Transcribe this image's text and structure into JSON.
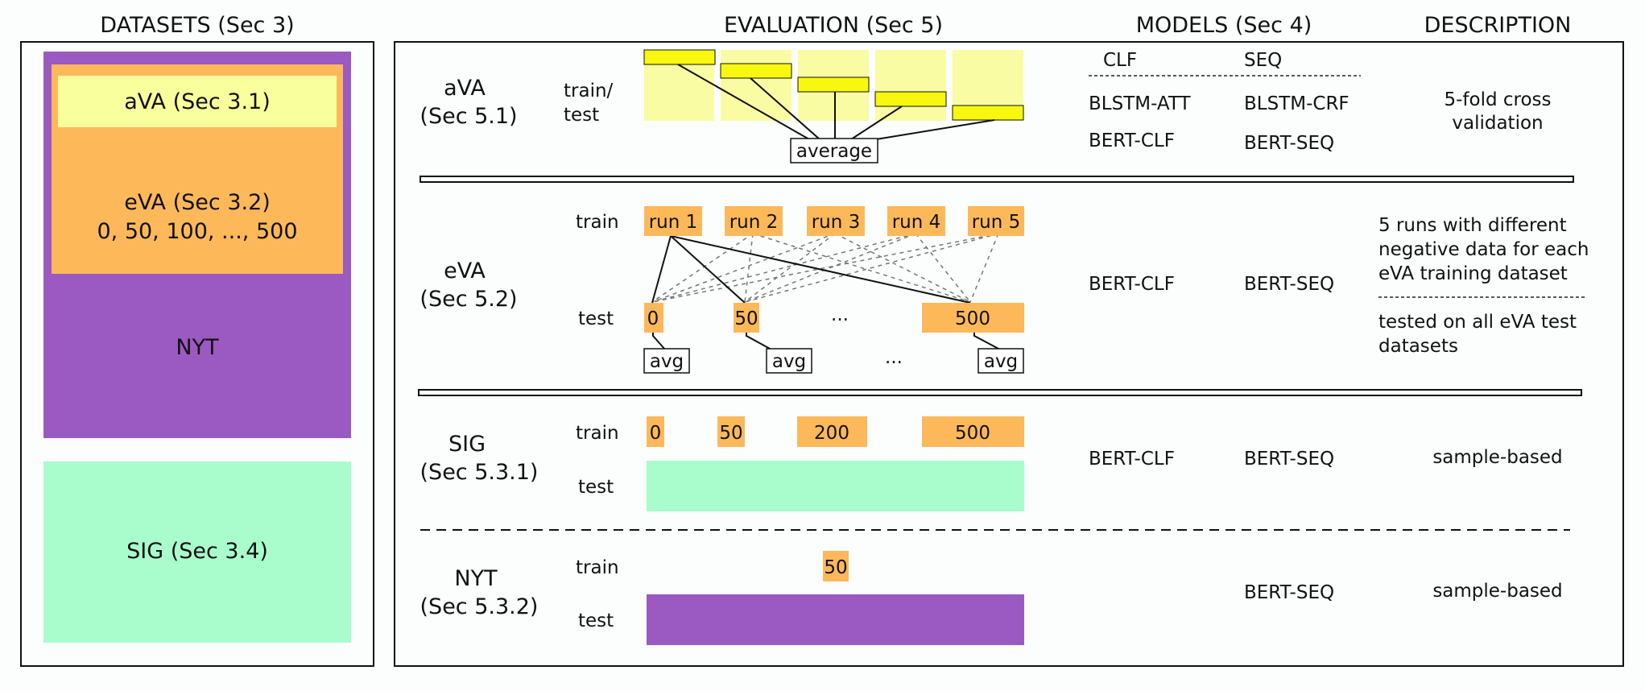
{
  "headers": {
    "datasets": "DATASETS (Sec 3)",
    "evaluation": "EVALUATION (Sec 5)",
    "models": "MODELS (Sec 4)",
    "description": "DESCRIPTION"
  },
  "datasets": {
    "ava": "aVA (Sec 3.1)",
    "eva_line1": "eVA (Sec 3.2)",
    "eva_line2": "0, 50, 100, ..., 500",
    "nyt": "NYT",
    "sig": "SIG (Sec 3.4)"
  },
  "colors": {
    "purple": "#9b59c2",
    "orange": "#fdb85a",
    "light_yellow": "#f8ff9c",
    "pale_yellow": "#f9fca3",
    "yellow": "#f7f70f",
    "mint": "#a9fdcc"
  },
  "ava": {
    "name": "aVA",
    "section": "(Sec  5.1)",
    "label_line1": "train/",
    "label_line2": "test",
    "average": "average",
    "col_clf": "CLF",
    "col_seq": "SEQ",
    "models_clf": [
      "BLSTM-ATT",
      "BERT-CLF"
    ],
    "models_seq": [
      "BLSTM-CRF",
      "BERT-SEQ"
    ],
    "desc_line1": "5-fold cross",
    "desc_line2": "validation"
  },
  "eva": {
    "name": "eVA",
    "section": "(Sec 5.2)",
    "train_label": "train",
    "test_label": "test",
    "runs": [
      "run 1",
      "run 2",
      "run 3",
      "run 4",
      "run 5"
    ],
    "tests": [
      "0",
      "50",
      "...",
      "500"
    ],
    "avg": "avg",
    "avg_dots": "...",
    "model_clf": "BERT-CLF",
    "model_seq": "BERT-SEQ",
    "desc_lines": [
      "5 runs with different",
      "negative data for each",
      "eVA training dataset"
    ],
    "desc2_lines": [
      "tested on all eVA test",
      "datasets"
    ]
  },
  "sig": {
    "name": "SIG",
    "section": "(Sec 5.3.1)",
    "train_label": "train",
    "test_label": "test",
    "train_values": [
      "0",
      "50",
      "200",
      "500"
    ],
    "model_clf": "BERT-CLF",
    "model_seq": "BERT-SEQ",
    "desc": "sample-based"
  },
  "nyt": {
    "name": "NYT",
    "section": "(Sec 5.3.2)",
    "train_label": "train",
    "test_label": "test",
    "train_value": "50",
    "model_seq": "BERT-SEQ",
    "desc": "sample-based"
  }
}
